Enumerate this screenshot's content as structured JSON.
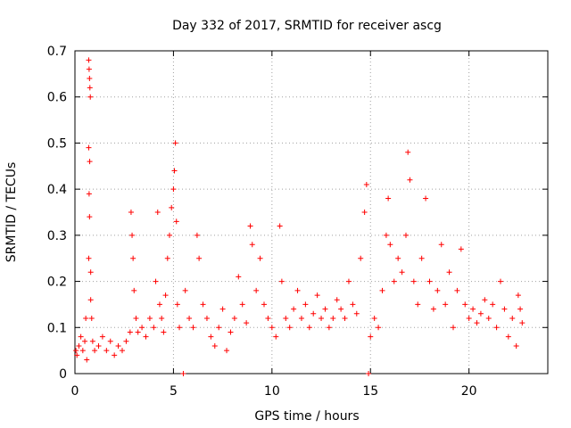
{
  "chart_data": {
    "type": "scatter",
    "title": "Day 332 of 2017, SRMTID for receiver ascg",
    "xlabel": "GPS time / hours",
    "ylabel": "SRMTID / TECUs",
    "xlim": [
      0,
      24
    ],
    "ylim": [
      0,
      0.7
    ],
    "xticks": [
      0,
      5,
      10,
      15,
      20
    ],
    "yticks": [
      0,
      0.1,
      0.2,
      0.3,
      0.4,
      0.5,
      0.6,
      0.7
    ],
    "grid": true,
    "marker": "plus",
    "colors": {
      "series": "#ff0000",
      "grid": "#a0a0a0",
      "axis": "#000000"
    },
    "series": [
      {
        "name": "SRMTID",
        "points": [
          [
            0.05,
            0.05
          ],
          [
            0.1,
            0.04
          ],
          [
            0.2,
            0.06
          ],
          [
            0.3,
            0.08
          ],
          [
            0.4,
            0.05
          ],
          [
            0.5,
            0.07
          ],
          [
            0.55,
            0.12
          ],
          [
            0.6,
            0.03
          ],
          [
            0.7,
            0.68
          ],
          [
            0.72,
            0.66
          ],
          [
            0.74,
            0.64
          ],
          [
            0.76,
            0.62
          ],
          [
            0.78,
            0.6
          ],
          [
            0.7,
            0.49
          ],
          [
            0.75,
            0.46
          ],
          [
            0.72,
            0.39
          ],
          [
            0.74,
            0.34
          ],
          [
            0.7,
            0.25
          ],
          [
            0.8,
            0.22
          ],
          [
            0.8,
            0.16
          ],
          [
            0.85,
            0.12
          ],
          [
            0.9,
            0.07
          ],
          [
            1.0,
            0.05
          ],
          [
            1.2,
            0.06
          ],
          [
            1.4,
            0.08
          ],
          [
            1.6,
            0.05
          ],
          [
            1.8,
            0.07
          ],
          [
            2.0,
            0.04
          ],
          [
            2.2,
            0.06
          ],
          [
            2.4,
            0.05
          ],
          [
            2.6,
            0.07
          ],
          [
            2.8,
            0.09
          ],
          [
            2.85,
            0.35
          ],
          [
            2.9,
            0.3
          ],
          [
            2.95,
            0.25
          ],
          [
            3.0,
            0.18
          ],
          [
            3.1,
            0.12
          ],
          [
            3.2,
            0.09
          ],
          [
            3.4,
            0.1
          ],
          [
            3.6,
            0.08
          ],
          [
            3.8,
            0.12
          ],
          [
            4.0,
            0.1
          ],
          [
            4.1,
            0.2
          ],
          [
            4.2,
            0.35
          ],
          [
            4.3,
            0.15
          ],
          [
            4.4,
            0.12
          ],
          [
            4.5,
            0.09
          ],
          [
            4.6,
            0.17
          ],
          [
            4.7,
            0.25
          ],
          [
            4.8,
            0.3
          ],
          [
            4.9,
            0.36
          ],
          [
            5.0,
            0.4
          ],
          [
            5.05,
            0.44
          ],
          [
            5.1,
            0.5
          ],
          [
            5.15,
            0.33
          ],
          [
            5.2,
            0.15
          ],
          [
            5.3,
            0.1
          ],
          [
            5.5,
            0.0
          ],
          [
            5.6,
            0.18
          ],
          [
            5.8,
            0.12
          ],
          [
            6.0,
            0.1
          ],
          [
            6.2,
            0.3
          ],
          [
            6.3,
            0.25
          ],
          [
            6.5,
            0.15
          ],
          [
            6.7,
            0.12
          ],
          [
            6.9,
            0.08
          ],
          [
            7.1,
            0.06
          ],
          [
            7.3,
            0.1
          ],
          [
            7.5,
            0.14
          ],
          [
            7.7,
            0.05
          ],
          [
            7.9,
            0.09
          ],
          [
            8.1,
            0.12
          ],
          [
            8.3,
            0.21
          ],
          [
            8.5,
            0.15
          ],
          [
            8.7,
            0.11
          ],
          [
            8.9,
            0.32
          ],
          [
            9.0,
            0.28
          ],
          [
            9.2,
            0.18
          ],
          [
            9.4,
            0.25
          ],
          [
            9.6,
            0.15
          ],
          [
            9.8,
            0.12
          ],
          [
            10.0,
            0.1
          ],
          [
            10.2,
            0.08
          ],
          [
            10.4,
            0.32
          ],
          [
            10.5,
            0.2
          ],
          [
            10.7,
            0.12
          ],
          [
            10.9,
            0.1
          ],
          [
            11.1,
            0.14
          ],
          [
            11.3,
            0.18
          ],
          [
            11.5,
            0.12
          ],
          [
            11.7,
            0.15
          ],
          [
            11.9,
            0.1
          ],
          [
            12.1,
            0.13
          ],
          [
            12.3,
            0.17
          ],
          [
            12.5,
            0.12
          ],
          [
            12.7,
            0.14
          ],
          [
            12.9,
            0.1
          ],
          [
            13.1,
            0.12
          ],
          [
            13.3,
            0.16
          ],
          [
            13.5,
            0.14
          ],
          [
            13.7,
            0.12
          ],
          [
            13.9,
            0.2
          ],
          [
            14.1,
            0.15
          ],
          [
            14.3,
            0.13
          ],
          [
            14.5,
            0.25
          ],
          [
            14.7,
            0.35
          ],
          [
            14.8,
            0.41
          ],
          [
            14.9,
            0.0
          ],
          [
            15.0,
            0.08
          ],
          [
            15.2,
            0.12
          ],
          [
            15.4,
            0.1
          ],
          [
            15.6,
            0.18
          ],
          [
            15.8,
            0.3
          ],
          [
            15.9,
            0.38
          ],
          [
            16.0,
            0.28
          ],
          [
            16.2,
            0.2
          ],
          [
            16.4,
            0.25
          ],
          [
            16.6,
            0.22
          ],
          [
            16.8,
            0.3
          ],
          [
            16.9,
            0.48
          ],
          [
            17.0,
            0.42
          ],
          [
            17.2,
            0.2
          ],
          [
            17.4,
            0.15
          ],
          [
            17.6,
            0.25
          ],
          [
            17.8,
            0.38
          ],
          [
            18.0,
            0.2
          ],
          [
            18.2,
            0.14
          ],
          [
            18.4,
            0.18
          ],
          [
            18.6,
            0.28
          ],
          [
            18.8,
            0.15
          ],
          [
            19.0,
            0.22
          ],
          [
            19.2,
            0.1
          ],
          [
            19.4,
            0.18
          ],
          [
            19.6,
            0.27
          ],
          [
            19.8,
            0.15
          ],
          [
            20.0,
            0.12
          ],
          [
            20.2,
            0.14
          ],
          [
            20.4,
            0.11
          ],
          [
            20.6,
            0.13
          ],
          [
            20.8,
            0.16
          ],
          [
            21.0,
            0.12
          ],
          [
            21.2,
            0.15
          ],
          [
            21.4,
            0.1
          ],
          [
            21.6,
            0.2
          ],
          [
            21.8,
            0.14
          ],
          [
            22.0,
            0.08
          ],
          [
            22.2,
            0.12
          ],
          [
            22.4,
            0.06
          ],
          [
            22.5,
            0.17
          ],
          [
            22.6,
            0.14
          ],
          [
            22.7,
            0.11
          ]
        ]
      }
    ]
  }
}
